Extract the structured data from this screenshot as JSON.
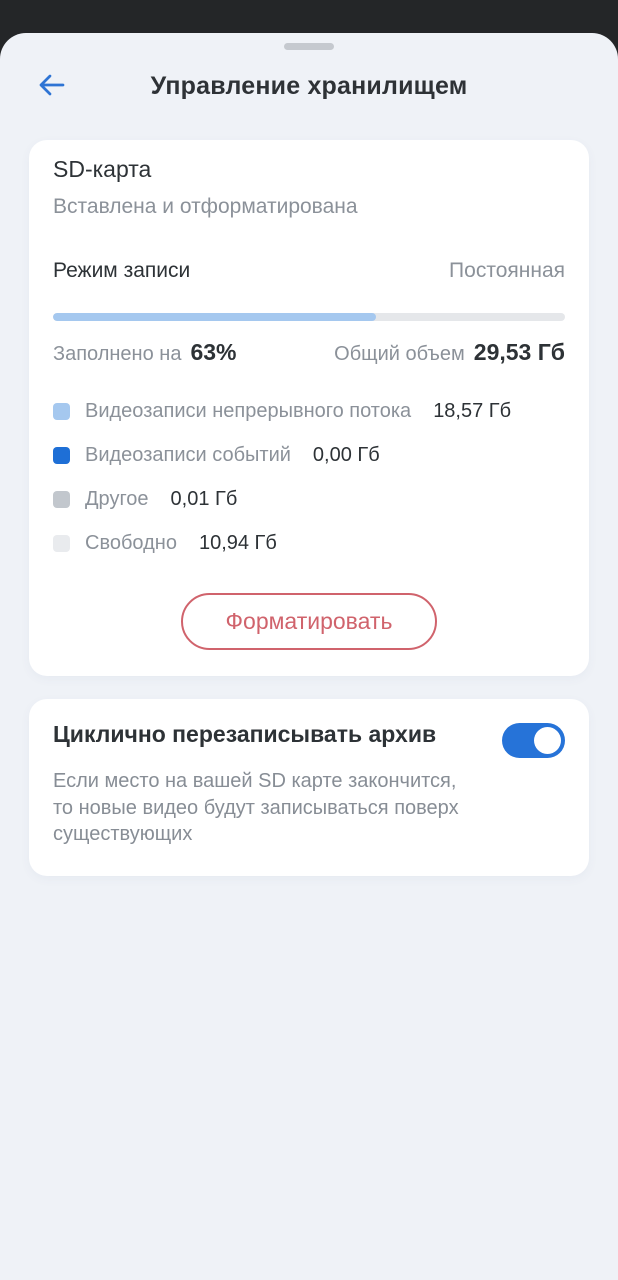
{
  "header": {
    "title": "Управление хранилищем",
    "back_icon": "arrow-left"
  },
  "sd_card": {
    "title": "SD-карта",
    "status": "Вставлена и отформатирована",
    "record_mode_label": "Режим записи",
    "record_mode_value": "Постоянная",
    "filled_label": "Заполнено на",
    "filled_value": "63%",
    "progress_percent": 63,
    "total_label": "Общий объем",
    "total_value": "29,53 Гб",
    "legend": [
      {
        "label": "Видеозаписи непрерывного потока",
        "value": "18,57 Гб",
        "color": "#a5c8ef"
      },
      {
        "label": "Видеозаписи событий",
        "value": "0,00 Гб",
        "color": "#1e6fd6"
      },
      {
        "label": "Другое",
        "value": "0,01 Гб",
        "color": "#c2c7cd"
      },
      {
        "label": "Свободно",
        "value": "10,94 Гб",
        "color": "#e9ebee"
      }
    ],
    "format_button_label": "Форматировать"
  },
  "overwrite": {
    "title": "Циклично перезаписывать архив",
    "description": "Если место на вашей SD карте закончится, то новые видео будут записываться поверх существующих",
    "enabled": true
  },
  "colors": {
    "backdrop": "#242628",
    "sheet_background": "#eff2f7",
    "card_background": "#ffffff",
    "accent_blue": "#2673d8",
    "progress_fill": "#a5c8ef",
    "progress_track": "#e5e7ea",
    "danger_red": "#d0636c",
    "text_dark": "#2d3236",
    "text_gray": "#8b9199"
  }
}
